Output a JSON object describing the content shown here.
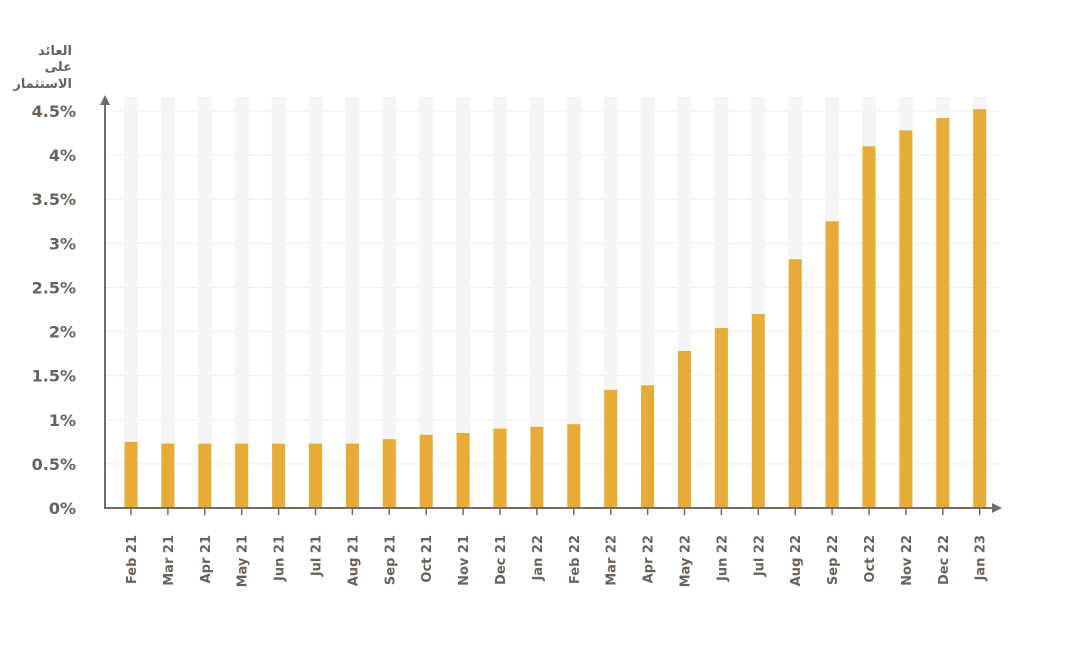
{
  "chart_data": {
    "type": "bar",
    "ylabel_lines": [
      "العائد",
      "على",
      "الاستثمار"
    ],
    "categories": [
      "Feb 21",
      "Mar 21",
      "Apr 21",
      "May 21",
      "Jun 21",
      "Jul 21",
      "Aug 21",
      "Sep 21",
      "Oct 21",
      "Nov 21",
      "Dec 21",
      "Jan 22",
      "Feb 22",
      "Mar 22",
      "Apr 22",
      "May 22",
      "Jun 22",
      "Jul 22",
      "Aug 22",
      "Sep 22",
      "Oct 22",
      "Nov 22",
      "Dec 22",
      "Jan 23"
    ],
    "values": [
      0.75,
      0.73,
      0.73,
      0.73,
      0.73,
      0.73,
      0.73,
      0.78,
      0.83,
      0.85,
      0.9,
      0.92,
      0.95,
      1.34,
      1.39,
      1.78,
      2.04,
      2.2,
      2.82,
      3.25,
      4.1,
      4.28,
      4.42,
      4.52
    ],
    "ytick_labels": [
      "0%",
      "0.5%",
      "1%",
      "1.5%",
      "2%",
      "2.5%",
      "3%",
      "3.5%",
      "4%",
      "4.5%"
    ],
    "ylim": [
      0,
      4.5
    ],
    "grid": true,
    "legend": "none",
    "colors": {
      "bar": "#E6AC37",
      "background_bar": "#F5F5F5",
      "axis": "#766B63",
      "text": "#6B6159",
      "grid": "#EEEEEE"
    }
  }
}
